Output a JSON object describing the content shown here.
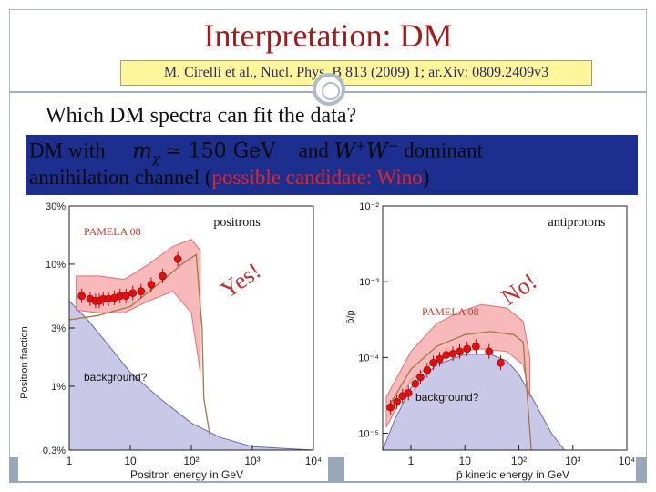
{
  "slide": {
    "title": "Interpretation: DM",
    "reference": "M. Cirelli et al., Nucl. Phys. B 813 (2009) 1; ar.Xiv: 0809.2409v3",
    "question": "Which DM spectra can fit the data?",
    "line1": {
      "prefix": "DM with",
      "math_mass": "m",
      "math_sub": "χ",
      "math_rel": "≃ 150 GeV",
      "and": "and",
      "math_W": "W",
      "math_Wplus": "+",
      "math_Wminus": "−",
      "suffix": "dominant"
    },
    "line2": {
      "prefix": "annihilation channel (",
      "highlight": "possible candidate: Wino",
      "suffix": ")"
    }
  },
  "left_plot": {
    "title": "positrons",
    "verdict": "Yes!",
    "legend": "PAMELA 08",
    "background_label": "background?",
    "ylabel": "Positron fraction",
    "xlabel": "Positron energy in GeV",
    "yticks": [
      "30%",
      "10%",
      "3%",
      "1%",
      "0.3%"
    ],
    "xticks": [
      "1",
      "10",
      "10²",
      "10³",
      "10⁴"
    ]
  },
  "right_plot": {
    "title": "antiprotons",
    "verdict": "No!",
    "legend": "PAMELA 08",
    "background_label": "background?",
    "ylabel": "p̄/p",
    "xlabel": "p̄ kinetic energy in GeV",
    "yticks": [
      "10⁻²",
      "10⁻³",
      "10⁻⁴",
      "10⁻⁵"
    ],
    "xticks": [
      "1",
      "10",
      "10²",
      "10³",
      "10⁴"
    ]
  },
  "chart_data": [
    {
      "type": "scatter",
      "title": "positrons",
      "xlabel": "Positron energy in GeV",
      "ylabel": "Positron fraction",
      "xscale": "log",
      "yscale": "log",
      "xlim": [
        1,
        10000
      ],
      "ylim": [
        0.003,
        0.3
      ],
      "series": [
        {
          "name": "PAMELA 08",
          "x": [
            1.6,
            2.2,
            2.7,
            3.1,
            3.6,
            4.4,
            5.5,
            6.8,
            8.5,
            11,
            15,
            22,
            34,
            60
          ],
          "y": [
            0.055,
            0.052,
            0.05,
            0.05,
            0.052,
            0.052,
            0.053,
            0.055,
            0.055,
            0.058,
            0.06,
            0.068,
            0.08,
            0.11
          ]
        }
      ]
    },
    {
      "type": "scatter",
      "title": "antiprotons",
      "xlabel": "p̄ kinetic energy in GeV",
      "ylabel": "p̄/p",
      "xscale": "log",
      "yscale": "log",
      "xlim": [
        0.3,
        10000
      ],
      "ylim": [
        6e-06,
        0.01
      ],
      "series": [
        {
          "name": "PAMELA 08",
          "x": [
            0.42,
            0.55,
            0.7,
            0.9,
            1.2,
            1.5,
            2.0,
            2.6,
            3.4,
            4.5,
            6.0,
            8.0,
            11,
            16,
            28,
            46
          ],
          "y": [
            2.2e-05,
            2.6e-05,
            3.1e-05,
            3.4e-05,
            4.5e-05,
            5.5e-05,
            6.8e-05,
            8.5e-05,
            9.5e-05,
            0.000108,
            0.000112,
            0.00012,
            0.00013,
            0.00014,
            0.00012,
            8.5e-05
          ]
        }
      ]
    }
  ]
}
